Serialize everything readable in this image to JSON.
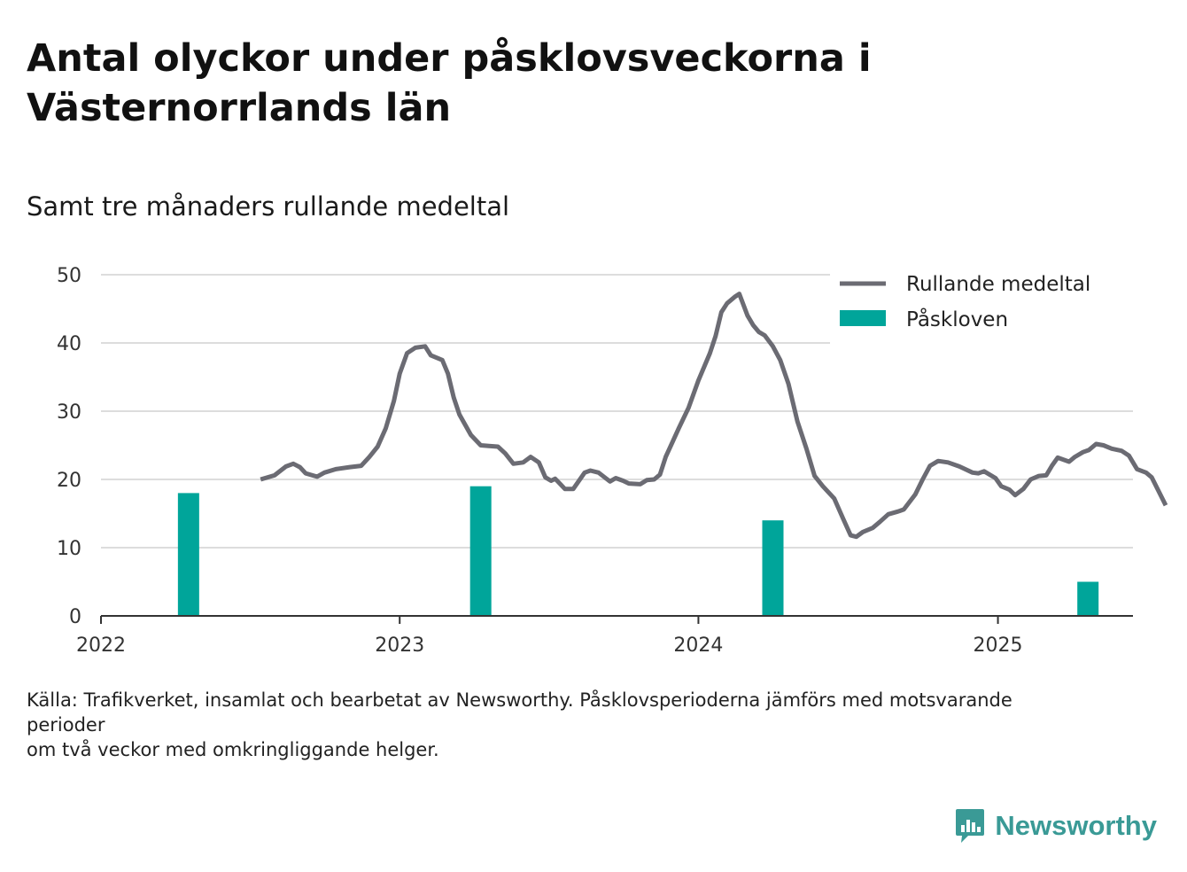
{
  "title": "Antal olyckor under påsklovsveckorna i Västernorrlands län",
  "subtitle": "Samt tre månaders rullande medeltal",
  "source_lines": [
    "Källa: Trafikverket, insamlat och bearbetat av Newsworthy. Påsklovsperioderna jämförs med motsvarande perioder",
    "om två veckor med omkringliggande helger."
  ],
  "brand": {
    "name": "Newsworthy",
    "icon": "newsworthy-logo-icon",
    "color": "#3a9a96"
  },
  "colors": {
    "line": "#6b6b73",
    "bar": "#00a59a",
    "grid": "#dddddd",
    "axis": "#333333"
  },
  "chart_data": {
    "type": "bar+line",
    "title": "Antal olyckor under påsklovsveckorna i Västernorrlands län",
    "subtitle": "Samt tre månaders rullande medeltal",
    "xlabel": "",
    "ylabel": "",
    "ylim": [
      0,
      50
    ],
    "yticks": [
      0,
      10,
      20,
      30,
      40,
      50
    ],
    "xlim": [
      "2022-01-01",
      "2025-06-15"
    ],
    "xticks": [
      {
        "date": "2022-01-01",
        "label": "2022"
      },
      {
        "date": "2023-01-01",
        "label": "2023"
      },
      {
        "date": "2024-01-01",
        "label": "2024"
      },
      {
        "date": "2025-01-01",
        "label": "2025"
      }
    ],
    "grid": true,
    "legend_position": "top-right",
    "series": [
      {
        "name": "Rullande medeltal",
        "type": "line",
        "points": [
          [
            "2022-07-15",
            20
          ],
          [
            "2022-08-01",
            20.6
          ],
          [
            "2022-08-15",
            21.9
          ],
          [
            "2022-08-24",
            22.3
          ],
          [
            "2022-09-01",
            21.8
          ],
          [
            "2022-09-08",
            20.9
          ],
          [
            "2022-09-22",
            20.4
          ],
          [
            "2022-10-01",
            21.0
          ],
          [
            "2022-10-15",
            21.5
          ],
          [
            "2022-11-01",
            21.8
          ],
          [
            "2022-11-15",
            22.0
          ],
          [
            "2022-11-25",
            23.3
          ],
          [
            "2022-12-05",
            24.8
          ],
          [
            "2022-12-15",
            27.5
          ],
          [
            "2022-12-25",
            31.5
          ],
          [
            "2023-01-01",
            35.5
          ],
          [
            "2023-01-10",
            38.5
          ],
          [
            "2023-01-20",
            39.3
          ],
          [
            "2023-02-01",
            39.5
          ],
          [
            "2023-02-08",
            38.2
          ],
          [
            "2023-02-22",
            37.5
          ],
          [
            "2023-03-01",
            35.5
          ],
          [
            "2023-03-08",
            32.0
          ],
          [
            "2023-03-15",
            29.5
          ],
          [
            "2023-03-29",
            26.5
          ],
          [
            "2023-04-10",
            25.0
          ],
          [
            "2023-04-20",
            24.9
          ],
          [
            "2023-05-01",
            24.8
          ],
          [
            "2023-05-10",
            23.8
          ],
          [
            "2023-05-20",
            22.3
          ],
          [
            "2023-06-01",
            22.5
          ],
          [
            "2023-06-10",
            23.3
          ],
          [
            "2023-06-20",
            22.5
          ],
          [
            "2023-06-28",
            20.3
          ],
          [
            "2023-07-05",
            19.8
          ],
          [
            "2023-07-10",
            20.1
          ],
          [
            "2023-07-22",
            18.6
          ],
          [
            "2023-08-01",
            18.6
          ],
          [
            "2023-08-15",
            21.0
          ],
          [
            "2023-08-22",
            21.3
          ],
          [
            "2023-09-01",
            21.0
          ],
          [
            "2023-09-15",
            19.7
          ],
          [
            "2023-09-22",
            20.2
          ],
          [
            "2023-10-01",
            19.8
          ],
          [
            "2023-10-08",
            19.4
          ],
          [
            "2023-10-22",
            19.3
          ],
          [
            "2023-10-30",
            19.9
          ],
          [
            "2023-11-08",
            20.0
          ],
          [
            "2023-11-15",
            20.7
          ],
          [
            "2023-11-22",
            23.3
          ],
          [
            "2023-12-08",
            27.5
          ],
          [
            "2023-12-20",
            30.5
          ],
          [
            "2024-01-01",
            34.5
          ],
          [
            "2024-01-15",
            38.5
          ],
          [
            "2024-01-22",
            41.0
          ],
          [
            "2024-01-29",
            44.5
          ],
          [
            "2024-02-05",
            45.8
          ],
          [
            "2024-02-15",
            46.8
          ],
          [
            "2024-02-20",
            47.2
          ],
          [
            "2024-03-01",
            44.0
          ],
          [
            "2024-03-08",
            42.6
          ],
          [
            "2024-03-15",
            41.6
          ],
          [
            "2024-03-22",
            41.1
          ],
          [
            "2024-04-01",
            39.5
          ],
          [
            "2024-04-10",
            37.5
          ],
          [
            "2024-04-20",
            34.0
          ],
          [
            "2024-05-01",
            28.5
          ],
          [
            "2024-05-12",
            24.5
          ],
          [
            "2024-05-22",
            20.5
          ],
          [
            "2024-06-01",
            19.0
          ],
          [
            "2024-06-15",
            17.2
          ],
          [
            "2024-06-26",
            14.2
          ],
          [
            "2024-07-05",
            11.8
          ],
          [
            "2024-07-12",
            11.6
          ],
          [
            "2024-07-20",
            12.3
          ],
          [
            "2024-08-01",
            12.9
          ],
          [
            "2024-08-10",
            13.8
          ],
          [
            "2024-08-20",
            14.9
          ],
          [
            "2024-09-01",
            15.3
          ],
          [
            "2024-09-08",
            15.6
          ],
          [
            "2024-09-22",
            17.8
          ],
          [
            "2024-10-01",
            20.0
          ],
          [
            "2024-10-10",
            22.0
          ],
          [
            "2024-10-20",
            22.7
          ],
          [
            "2024-11-01",
            22.5
          ],
          [
            "2024-11-15",
            21.9
          ],
          [
            "2024-12-01",
            21.0
          ],
          [
            "2024-12-08",
            20.9
          ],
          [
            "2024-12-15",
            21.2
          ],
          [
            "2024-12-29",
            20.2
          ],
          [
            "2025-01-05",
            19.0
          ],
          [
            "2025-01-15",
            18.5
          ],
          [
            "2025-01-22",
            17.7
          ],
          [
            "2025-02-01",
            18.6
          ],
          [
            "2025-02-10",
            20.0
          ],
          [
            "2025-02-20",
            20.5
          ],
          [
            "2025-03-01",
            20.6
          ],
          [
            "2025-03-08",
            22.0
          ],
          [
            "2025-03-15",
            23.2
          ],
          [
            "2025-03-29",
            22.6
          ],
          [
            "2025-04-05",
            23.3
          ],
          [
            "2025-04-15",
            24.0
          ],
          [
            "2025-04-22",
            24.3
          ],
          [
            "2025-05-01",
            25.2
          ],
          [
            "2025-05-10",
            25.0
          ],
          [
            "2025-05-20",
            24.5
          ],
          [
            "2025-06-01",
            24.2
          ],
          [
            "2025-06-10",
            23.5
          ],
          [
            "2025-06-20",
            21.5
          ],
          [
            "2025-07-01",
            21.0
          ],
          [
            "2025-07-08",
            20.3
          ],
          [
            "2025-07-25",
            16.2
          ]
        ]
      },
      {
        "name": "Påskloven",
        "type": "bar",
        "points": [
          [
            "2022-04-18",
            18
          ],
          [
            "2023-04-10",
            19
          ],
          [
            "2024-04-01",
            14
          ],
          [
            "2025-04-21",
            5
          ]
        ]
      }
    ]
  }
}
